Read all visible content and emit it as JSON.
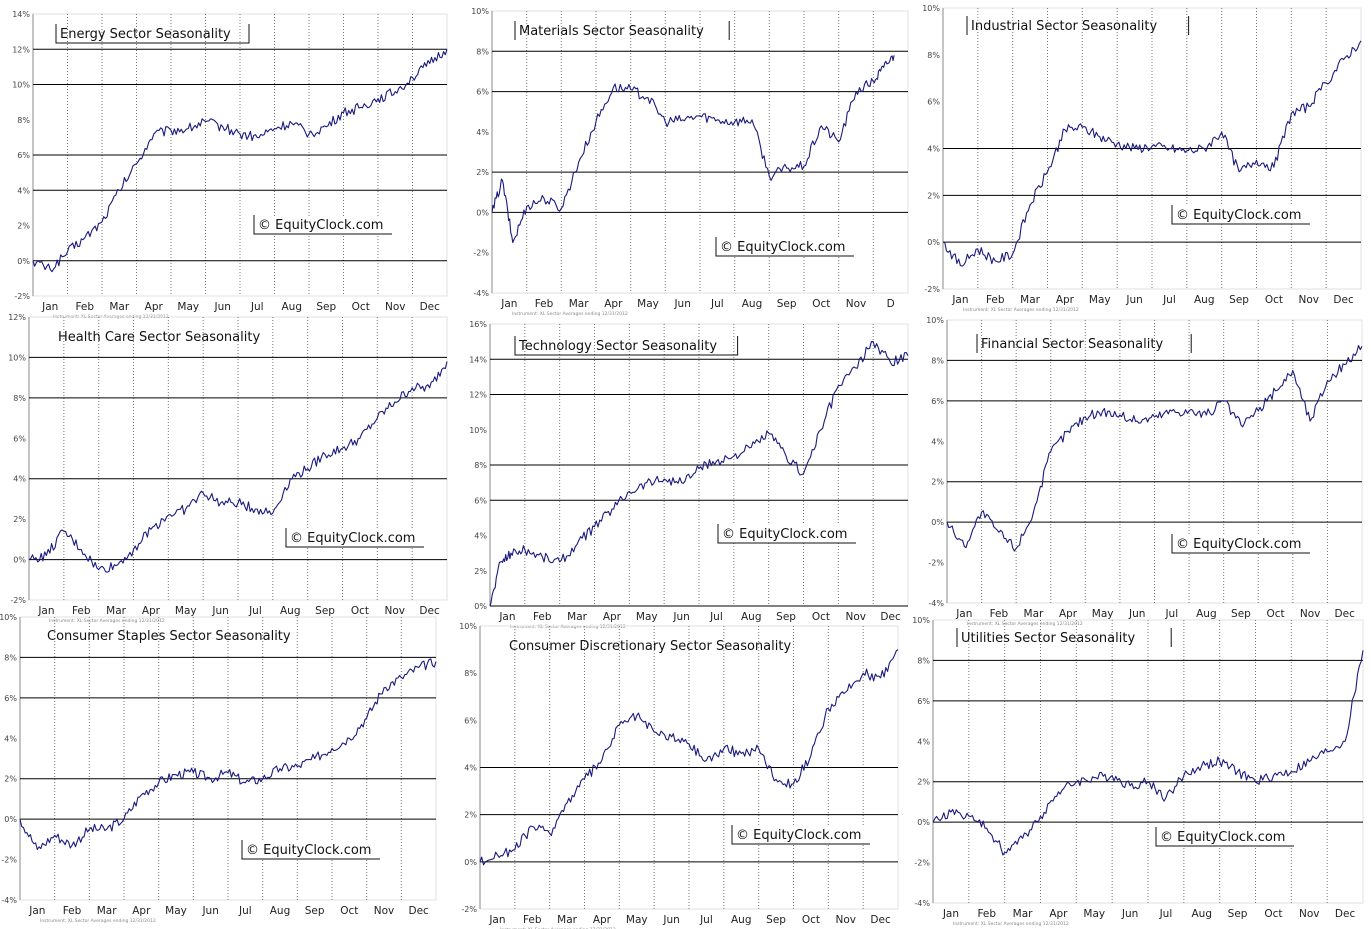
{
  "watermark": "© EquityClock.com",
  "footnote": "Instrument: XL Sector Averages ending 12/31/2012",
  "colors": {
    "line": "#1a1a80",
    "grid_h": "#000000",
    "grid_v": "#777777",
    "frame": "#888888"
  },
  "chart_data": [
    {
      "type": "line",
      "title": "Energy Sector Seasonality",
      "ylim": [
        -2,
        14
      ],
      "yticks": [
        "-2%",
        "0%",
        "2%",
        "4%",
        "6%",
        "8%",
        "10%",
        "12%",
        "14%"
      ],
      "hlines": [
        4,
        6,
        10,
        12
      ],
      "months": [
        "Jan",
        "Feb",
        "Mar",
        "Apr",
        "May",
        "Jun",
        "Jul",
        "Aug",
        "Sep",
        "Oct",
        "Nov",
        "Dec"
      ],
      "series": [
        {
          "x": [
            0,
            0.5,
            1,
            1.5,
            2,
            2.5,
            3,
            3.5,
            4,
            4.5,
            5,
            5.5,
            6,
            6.5,
            7,
            7.5,
            8,
            8.5,
            9,
            9.5,
            10,
            10.5,
            11,
            11.5,
            12
          ],
          "values": [
            0,
            -0.5,
            0.5,
            1.3,
            2.2,
            4.0,
            5.5,
            7.2,
            7.4,
            7.5,
            7.9,
            7.6,
            7.2,
            7.0,
            7.5,
            7.8,
            7.2,
            7.6,
            8.4,
            8.7,
            9.2,
            9.6,
            10.4,
            11.2,
            12.0
          ]
        }
      ]
    },
    {
      "type": "line",
      "title": "Materials Sector Seasonality",
      "ylim": [
        -4,
        10
      ],
      "yticks": [
        "-4%",
        "-2%",
        "0%",
        "2%",
        "4%",
        "6%",
        "8%",
        "10%"
      ],
      "hlines": [
        2,
        6,
        8
      ],
      "months": [
        "Jan",
        "Feb",
        "Mar",
        "Apr",
        "May",
        "Jun",
        "Jul",
        "Aug",
        "Sep",
        "Oct",
        "Nov",
        "D"
      ],
      "series": [
        {
          "x": [
            0,
            0.3,
            0.6,
            1,
            1.5,
            2,
            2.5,
            3,
            3.5,
            4,
            4.5,
            5,
            5.5,
            6,
            6.5,
            7,
            7.5,
            8,
            8.5,
            9,
            9.5,
            10,
            10.5,
            11,
            11.3,
            11.6
          ],
          "values": [
            0,
            1.6,
            -1.5,
            0.3,
            0.7,
            0.2,
            2.5,
            4.5,
            6.2,
            6.1,
            5.7,
            4.5,
            4.6,
            4.8,
            4.6,
            4.5,
            4.6,
            1.8,
            2.2,
            2.3,
            4.3,
            3.5,
            6.0,
            6.5,
            7.2,
            7.8
          ]
        }
      ]
    },
    {
      "type": "line",
      "title": "Industrial Sector Seasonality",
      "ylim": [
        -2,
        10
      ],
      "yticks": [
        "-2%",
        "0%",
        "2%",
        "4%",
        "6%",
        "8%",
        "10%"
      ],
      "hlines": [
        2,
        4
      ],
      "months": [
        "Jan",
        "Feb",
        "Mar",
        "Apr",
        "May",
        "Jun",
        "Jul",
        "Aug",
        "Sep",
        "Oct",
        "Nov",
        "Dec"
      ],
      "series": [
        {
          "x": [
            0,
            0.5,
            1,
            1.5,
            2,
            2.5,
            3,
            3.5,
            4,
            4.5,
            5,
            5.5,
            6,
            6.5,
            7,
            7.5,
            8,
            8.5,
            9,
            9.5,
            10,
            10.5,
            11,
            11.5,
            12
          ],
          "values": [
            0,
            -1.0,
            -0.3,
            -0.8,
            -0.5,
            1.6,
            3.0,
            4.8,
            4.9,
            4.5,
            4.2,
            4.0,
            4.1,
            4.0,
            3.9,
            4.0,
            4.7,
            3.0,
            3.5,
            3.2,
            5.5,
            5.8,
            6.8,
            7.8,
            8.6
          ]
        }
      ]
    },
    {
      "type": "line",
      "title": "Health Care Sector Seasonality",
      "ylim": [
        -2,
        12
      ],
      "yticks": [
        "-2%",
        "0%",
        "2%",
        "4%",
        "6%",
        "8%",
        "10%",
        "12%"
      ],
      "hlines": [
        4,
        8,
        10
      ],
      "months": [
        "Jan",
        "Feb",
        "Mar",
        "Apr",
        "May",
        "Jun",
        "Jul",
        "Aug",
        "Sep",
        "Oct",
        "Nov",
        "Dec"
      ],
      "series": [
        {
          "x": [
            0,
            0.5,
            1,
            1.5,
            2,
            2.5,
            3,
            3.5,
            4,
            4.5,
            5,
            5.5,
            6,
            6.5,
            7,
            7.5,
            8,
            8.5,
            9,
            9.5,
            10,
            10.5,
            11,
            11.5,
            12
          ],
          "values": [
            0,
            0.2,
            1.4,
            0.5,
            -0.5,
            -0.3,
            0.5,
            1.5,
            2.2,
            2.5,
            3.3,
            2.8,
            2.8,
            2.5,
            2.3,
            4.0,
            4.5,
            5.2,
            5.5,
            6.0,
            7.0,
            7.8,
            8.5,
            8.5,
            9.8
          ]
        }
      ]
    },
    {
      "type": "line",
      "title": "Technology Sector Seasonality",
      "ylim": [
        0,
        16
      ],
      "yticks": [
        "0%",
        "2%",
        "4%",
        "6%",
        "8%",
        "10%",
        "12%",
        "14%",
        "16%"
      ],
      "hlines": [
        6,
        8,
        12,
        14
      ],
      "months": [
        "Jan",
        "Feb",
        "Mar",
        "Apr",
        "May",
        "Jun",
        "Jul",
        "Aug",
        "Sep",
        "Oct",
        "Nov",
        "Dec"
      ],
      "series": [
        {
          "x": [
            0,
            0.3,
            0.6,
            1,
            1.5,
            2,
            2.5,
            3,
            3.5,
            4,
            4.5,
            5,
            5.5,
            6,
            6.5,
            7,
            7.5,
            8,
            8.5,
            9,
            9.5,
            10,
            10.5,
            11,
            11.5,
            12
          ],
          "values": [
            0,
            2.5,
            3.0,
            3.2,
            2.8,
            2.5,
            3.5,
            4.5,
            5.5,
            6.5,
            7.0,
            7.2,
            7.0,
            7.8,
            8.2,
            8.5,
            9.0,
            9.8,
            8.5,
            7.5,
            10.0,
            12.5,
            13.5,
            15.0,
            13.8,
            14.2
          ]
        }
      ]
    },
    {
      "type": "line",
      "title": "Financial Sector Seasonality",
      "ylim": [
        -4,
        10
      ],
      "yticks": [
        "-4%",
        "-2%",
        "0%",
        "2%",
        "4%",
        "6%",
        "8%",
        "10%"
      ],
      "hlines": [
        2,
        6,
        8
      ],
      "months": [
        "Jan",
        "Feb",
        "Mar",
        "Apr",
        "May",
        "Jun",
        "Jul",
        "Aug",
        "Sep",
        "Oct",
        "Nov",
        "Dec"
      ],
      "series": [
        {
          "x": [
            0,
            0.5,
            1,
            1.5,
            2,
            2.5,
            3,
            3.5,
            4,
            4.5,
            5,
            5.5,
            6,
            6.5,
            7,
            7.5,
            8,
            8.5,
            9,
            9.5,
            10,
            10.5,
            11,
            11.5,
            12
          ],
          "values": [
            0,
            -1.2,
            0.5,
            -0.5,
            -1.3,
            0.5,
            3.5,
            4.5,
            5.2,
            5.5,
            5.3,
            5.0,
            5.2,
            5.5,
            5.5,
            5.3,
            6.0,
            4.8,
            5.5,
            6.5,
            7.5,
            5.0,
            7.0,
            7.8,
            8.7
          ]
        }
      ]
    },
    {
      "type": "line",
      "title": "Consumer Staples Sector Seasonality",
      "ylim": [
        -4,
        10
      ],
      "yticks": [
        "-4%",
        "-2%",
        "0%",
        "2%",
        "4%",
        "6%",
        "8%",
        "10%"
      ],
      "hlines": [
        2,
        6,
        8
      ],
      "months": [
        "Jan",
        "Feb",
        "Mar",
        "Apr",
        "May",
        "Jun",
        "Jul",
        "Aug",
        "Sep",
        "Oct",
        "Nov",
        "Dec"
      ],
      "series": [
        {
          "x": [
            0,
            0.5,
            1,
            1.5,
            2,
            2.5,
            3,
            3.5,
            4,
            4.5,
            5,
            5.5,
            6,
            6.5,
            7,
            7.5,
            8,
            8.5,
            9,
            9.5,
            10,
            10.5,
            11,
            11.5,
            12
          ],
          "values": [
            0,
            -1.5,
            -0.8,
            -1.3,
            -0.5,
            -0.5,
            0,
            1.2,
            1.8,
            2.2,
            2.3,
            2.0,
            2.3,
            1.8,
            2.0,
            2.5,
            2.6,
            3.0,
            3.5,
            4.0,
            5.0,
            6.5,
            7.0,
            7.5,
            7.8
          ]
        }
      ]
    },
    {
      "type": "line",
      "title": "Consumer Discretionary Sector Seasonality",
      "ylim": [
        -2,
        10
      ],
      "yticks": [
        "-2%",
        "0%",
        "2%",
        "4%",
        "6%",
        "8%",
        "10%"
      ],
      "hlines": [
        2,
        4
      ],
      "months": [
        "Jan",
        "Feb",
        "Mar",
        "Apr",
        "May",
        "Jun",
        "Jul",
        "Aug",
        "Sep",
        "Oct",
        "Nov",
        "Dec"
      ],
      "series": [
        {
          "x": [
            0,
            0.5,
            1,
            1.5,
            2,
            2.5,
            3,
            3.5,
            4,
            4.5,
            5,
            5.5,
            6,
            6.5,
            7,
            7.5,
            8,
            8.5,
            9,
            9.5,
            10,
            10.5,
            11,
            11.5,
            12
          ],
          "values": [
            0,
            0.3,
            0.5,
            1.5,
            1.2,
            2.5,
            3.5,
            4.3,
            5.8,
            6.2,
            5.5,
            5.3,
            5.0,
            4.3,
            4.8,
            4.6,
            4.8,
            3.5,
            3.3,
            4.5,
            6.5,
            7.2,
            8.0,
            7.8,
            9.0
          ]
        }
      ]
    },
    {
      "type": "line",
      "title": "Utilities Sector Seasonality",
      "ylim": [
        -4,
        10
      ],
      "yticks": [
        "-4%",
        "-2%",
        "0%",
        "2%",
        "4%",
        "6%",
        "8%",
        "10%"
      ],
      "hlines": [
        2,
        6,
        8
      ],
      "months": [
        "Jan",
        "Feb",
        "Mar",
        "Apr",
        "May",
        "Jun",
        "Jul",
        "Aug",
        "Sep",
        "Oct",
        "Nov",
        "Dec"
      ],
      "series": [
        {
          "x": [
            0,
            0.5,
            1,
            1.5,
            2,
            2.5,
            3,
            3.5,
            4,
            4.5,
            5,
            5.5,
            6,
            6.5,
            7,
            7.5,
            8,
            8.5,
            9,
            9.5,
            10,
            10.5,
            11,
            11.5,
            12
          ],
          "values": [
            0,
            0.5,
            0.3,
            -0.3,
            -1.5,
            -0.8,
            0.3,
            1.5,
            2.0,
            2.2,
            2.3,
            1.8,
            2.0,
            1.2,
            2.3,
            2.8,
            3.0,
            2.5,
            2.0,
            2.3,
            2.5,
            3.0,
            3.5,
            4.0,
            8.5
          ]
        }
      ]
    }
  ]
}
